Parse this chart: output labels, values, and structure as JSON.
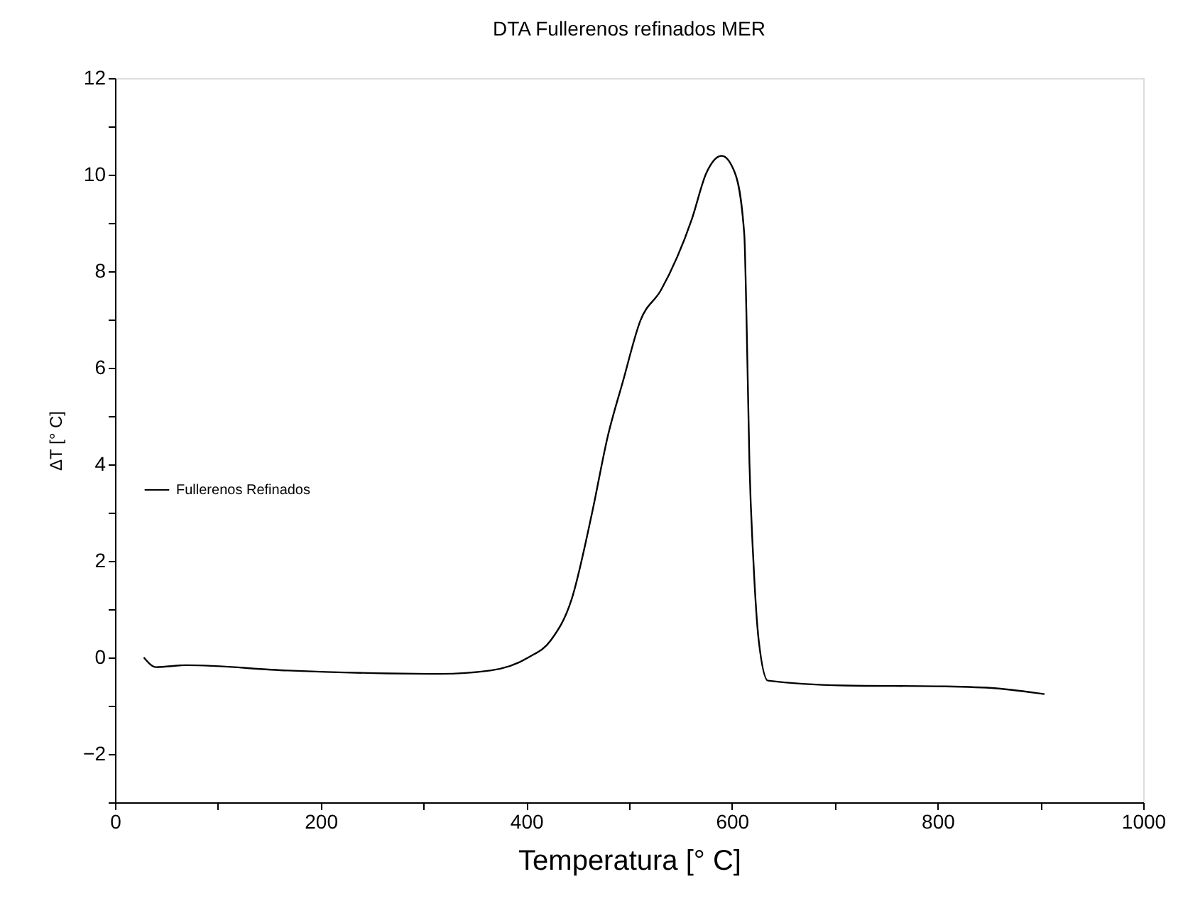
{
  "chart_data": {
    "type": "line",
    "title": "DTA Fullerenos refinados MER",
    "xlabel": "Temperatura [° C]",
    "ylabel": "ΔT [° C]",
    "xlim": [
      0,
      1000
    ],
    "ylim": [
      -3,
      12
    ],
    "xticks": [
      0,
      {
        "value": 100,
        "label": null
      },
      200,
      {
        "value": 300,
        "label": null
      },
      400,
      {
        "value": 500,
        "label": null
      },
      600,
      {
        "value": 700,
        "label": null
      },
      800,
      {
        "value": 900,
        "label": null
      },
      1000
    ],
    "yticks": [
      {
        "value": -3,
        "label": null
      },
      -2,
      {
        "value": -1,
        "label": null
      },
      0,
      {
        "value": 1,
        "label": null
      },
      2,
      {
        "value": 3,
        "label": null
      },
      4,
      {
        "value": 5,
        "label": null
      },
      6,
      {
        "value": 7,
        "label": null
      },
      8,
      {
        "value": 9,
        "label": null
      },
      10,
      {
        "value": 11,
        "label": null
      },
      12
    ],
    "grid": false,
    "legend": "left",
    "marker": "none",
    "line_style": "solid",
    "series": [
      {
        "name": "Fullerenos Refinados",
        "color": "#000000",
        "x": [
          28,
          40,
          69,
          168,
          266,
          316,
          365,
          402,
          424,
          444,
          464,
          479,
          494,
          511,
          531,
          561,
          575,
          590,
          603,
          612,
          614,
          617,
          621,
          626,
          635,
          709,
          807,
          857,
          904
        ],
        "values": [
          0.0,
          -0.2,
          -0.16,
          -0.27,
          -0.33,
          -0.34,
          -0.27,
          0.0,
          0.36,
          1.2,
          3.0,
          4.56,
          5.72,
          6.98,
          7.61,
          9.08,
          10.03,
          10.39,
          10.03,
          8.76,
          7.19,
          4.04,
          1.94,
          0.36,
          -0.48,
          -0.58,
          -0.6,
          -0.64,
          -0.76
        ]
      }
    ]
  }
}
